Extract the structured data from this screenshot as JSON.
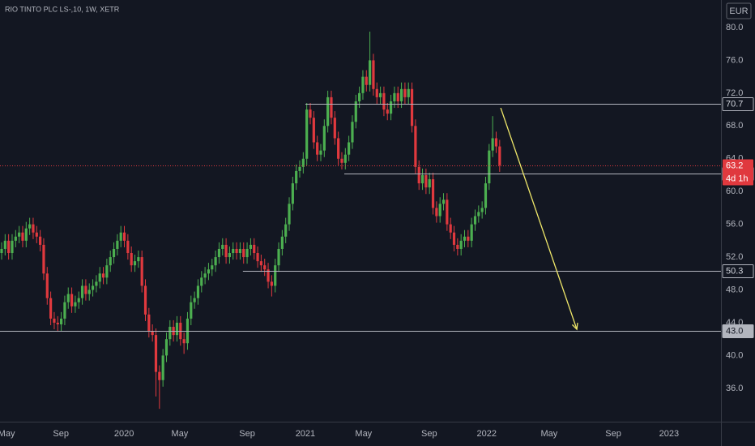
{
  "chart_data": {
    "type": "candlestick",
    "title": "RIO TINTO PLC LS-,10, 1W, XETR",
    "currency": "EUR",
    "up_color": "#4caf50",
    "down_color": "#e0393e",
    "grid": false,
    "open": [
      52.5,
      53,
      54,
      52.5,
      54,
      54.5,
      55,
      54,
      55.5,
      56,
      55,
      54.5,
      53.5,
      50,
      47,
      44.5,
      44,
      43.8,
      44.5,
      46.5,
      47.5,
      46,
      46.5,
      47,
      48.5,
      47.5,
      48,
      48.5,
      49,
      50,
      49.5,
      51,
      52,
      53,
      54,
      55,
      54,
      52.5,
      51,
      51.5,
      52,
      48.5,
      45,
      43,
      42.5,
      38,
      37,
      40,
      42,
      43.5,
      42.5,
      44,
      42,
      41.5,
      44.5,
      46.5,
      47,
      48.5,
      49.5,
      50,
      50.5,
      51,
      52,
      53,
      53.5,
      52,
      52.5,
      53,
      52.5,
      53,
      52,
      53,
      53.5,
      52.5,
      51.5,
      51,
      50.5,
      49,
      48.5,
      51,
      53,
      54.5,
      56,
      58.5,
      61,
      62.5,
      63,
      64,
      70,
      69,
      66,
      64.5,
      65,
      68,
      71.5,
      69,
      66.5,
      64,
      63.5,
      64.5,
      66,
      68.5,
      71,
      72,
      74,
      73,
      76,
      72.5,
      71.5,
      72,
      70,
      69.5,
      71,
      72,
      71,
      72.5,
      71.5,
      72.5,
      68,
      63,
      61,
      62,
      60.5,
      61.5,
      58,
      57,
      58.5,
      59,
      56,
      55,
      53.5,
      53,
      54,
      54.5,
      54,
      56,
      57,
      57.5,
      58,
      61,
      65,
      66.5,
      65.5
    ],
    "high": [
      53.8,
      54.8,
      54.8,
      54.8,
      55.3,
      55.8,
      55.8,
      56.3,
      56.8,
      56.8,
      55.8,
      55.3,
      54.3,
      50.8,
      47.8,
      45.3,
      44.8,
      45.3,
      47.3,
      48.3,
      48.3,
      47.3,
      47.8,
      49.3,
      49.3,
      48.8,
      49.3,
      49.8,
      50.8,
      50.8,
      51.8,
      52.8,
      53.8,
      54.8,
      55.8,
      55.8,
      54.8,
      53.3,
      52.3,
      52.8,
      52.8,
      49.3,
      45.8,
      43.8,
      43.3,
      38.8,
      40.8,
      42.8,
      44.3,
      44.3,
      44.8,
      44.8,
      42.8,
      45.3,
      47.3,
      47.8,
      49.3,
      50.3,
      50.8,
      51.3,
      51.8,
      52.8,
      53.8,
      54.3,
      54.3,
      53.3,
      53.8,
      53.8,
      53.8,
      53.8,
      53.8,
      54.3,
      54.3,
      53.3,
      52.3,
      51.8,
      51.3,
      49.8,
      51.8,
      53.8,
      55.3,
      56.8,
      59.3,
      61.8,
      63.3,
      63.8,
      64.8,
      70.8,
      70.8,
      69.8,
      66.8,
      65.8,
      68.8,
      72.3,
      72.3,
      69.8,
      67.3,
      64.8,
      65.3,
      66.8,
      69.3,
      71.8,
      72.8,
      74.8,
      74.8,
      79.5,
      76.8,
      73.3,
      72.8,
      72.8,
      70.8,
      71.8,
      72.8,
      72.8,
      73.3,
      73.3,
      73.3,
      73.3,
      68.8,
      63.8,
      62.8,
      62.8,
      62.3,
      62.3,
      58.8,
      59.3,
      59.8,
      59.8,
      56.8,
      55.8,
      54.3,
      54.8,
      55.3,
      55.3,
      56.8,
      57.8,
      58.3,
      58.8,
      61.8,
      65.8,
      69.2,
      67.3,
      66.3
    ],
    "low": [
      51.7,
      52.2,
      51.7,
      51.7,
      53.2,
      53.7,
      53.2,
      53.2,
      54.7,
      54.2,
      53.7,
      52.7,
      49.2,
      46.2,
      43.7,
      43.2,
      43,
      43,
      43.7,
      45.7,
      45.2,
      45.2,
      45.7,
      46.2,
      46.7,
      46.7,
      47.2,
      47.7,
      48.2,
      48.7,
      48.7,
      50.2,
      51.2,
      52.2,
      53.2,
      53.2,
      51.7,
      50.2,
      50.2,
      50.7,
      47.7,
      44.2,
      42.2,
      41.7,
      35,
      33.5,
      36.2,
      39.2,
      41.2,
      41.7,
      41.7,
      41.2,
      40.2,
      40.7,
      43.7,
      45.7,
      46.2,
      47.7,
      48.7,
      49.2,
      49.7,
      50.2,
      51.2,
      52.2,
      51.2,
      51.2,
      51.7,
      51.7,
      51.7,
      51.2,
      51.2,
      52.2,
      51.7,
      50.7,
      50.2,
      49.7,
      48.2,
      47.2,
      47.7,
      50.2,
      52.2,
      53.7,
      55.2,
      57.7,
      60.2,
      61.7,
      62.2,
      63.2,
      68.2,
      65.2,
      63.7,
      63.7,
      64.2,
      67.2,
      68.2,
      65.7,
      63.2,
      62.7,
      62.7,
      63.7,
      65.2,
      67.7,
      70.2,
      71.2,
      72.2,
      72.2,
      71.7,
      70.7,
      70.7,
      69.2,
      68.7,
      68.7,
      70.2,
      70.2,
      70.2,
      70.7,
      70.7,
      67.2,
      62.2,
      60.2,
      60.2,
      59.7,
      59.7,
      57.2,
      56.2,
      56.2,
      57.7,
      55.2,
      54.2,
      52.7,
      52.2,
      52.2,
      53.2,
      53.2,
      53.2,
      55.2,
      56.2,
      56.7,
      57.2,
      60.2,
      64.2,
      64.7,
      62.4
    ],
    "close": [
      53,
      54,
      52.5,
      54,
      54.5,
      55,
      54,
      55.5,
      56,
      55,
      54.5,
      53.5,
      50,
      47,
      44.5,
      44,
      43.8,
      44.5,
      46.5,
      47.5,
      46,
      46.5,
      47,
      48.5,
      47.5,
      48,
      48.5,
      49,
      50,
      49.5,
      51,
      52,
      53,
      54,
      55,
      54,
      52.5,
      51,
      51.5,
      52,
      48.5,
      45,
      43,
      42.5,
      38,
      37,
      40,
      42,
      43.5,
      42.5,
      44,
      42,
      41.5,
      44.5,
      46.5,
      47,
      48.5,
      49.5,
      50,
      50.5,
      51,
      52,
      53,
      53.5,
      52,
      52.5,
      53,
      52.5,
      53,
      52,
      53,
      53.5,
      52.5,
      51.5,
      51,
      50.5,
      49,
      48.5,
      51,
      53,
      54.5,
      56,
      58.5,
      61,
      62.5,
      63,
      64,
      70,
      69,
      66,
      64.5,
      65,
      68,
      71.5,
      69,
      66.5,
      64,
      63.5,
      64.5,
      66,
      68.5,
      71,
      72,
      74,
      73,
      76,
      72.5,
      71.5,
      72,
      70,
      69.5,
      71,
      72,
      71,
      72.5,
      71.5,
      72.5,
      68,
      63,
      61,
      62,
      60.5,
      61.5,
      58,
      57,
      58.5,
      59,
      56,
      55,
      53.5,
      53,
      54,
      54.5,
      54,
      56,
      57,
      57.5,
      58,
      61,
      65,
      66.5,
      65.5,
      63.2
    ],
    "xlim": [
      -0.46,
      205.1
    ],
    "ylim": [
      31.93,
      83.36
    ],
    "xticks": [
      {
        "value": 1.4,
        "label": "May"
      },
      {
        "value": 16.9,
        "label": "Sep"
      },
      {
        "value": 34.9,
        "label": "2020"
      },
      {
        "value": 50.8,
        "label": "May"
      },
      {
        "value": 70,
        "label": "Sep"
      },
      {
        "value": 86.6,
        "label": "2021"
      },
      {
        "value": 103.2,
        "label": "May"
      },
      {
        "value": 121.9,
        "label": "Sep"
      },
      {
        "value": 138.3,
        "label": "2022"
      },
      {
        "value": 156.1,
        "label": "May"
      },
      {
        "value": 174.4,
        "label": "Sep"
      },
      {
        "value": 190.3,
        "label": "2023"
      }
    ],
    "yticks": [
      {
        "value": 36,
        "label": "36.0"
      },
      {
        "value": 40,
        "label": "40.0"
      },
      {
        "value": 44,
        "label": "44.0"
      },
      {
        "value": 48,
        "label": "48.0"
      },
      {
        "value": 52,
        "label": "52.0"
      },
      {
        "value": 56,
        "label": "56.0"
      },
      {
        "value": 60,
        "label": "60.0"
      },
      {
        "value": 64,
        "label": "64.0"
      },
      {
        "value": 68,
        "label": "68.0"
      },
      {
        "value": 72,
        "label": "72.0"
      },
      {
        "value": 76,
        "label": "76.0"
      },
      {
        "value": 80,
        "label": "80.0"
      }
    ],
    "levels": [
      {
        "value": 70.7,
        "start": 86.6,
        "style": "outline"
      },
      {
        "value": 62.2,
        "start": 97.7,
        "style": "filled"
      },
      {
        "value": 50.3,
        "start": 68.8,
        "style": "outline"
      },
      {
        "value": 43,
        "label": "43.0",
        "start": -0.46,
        "style": "filled"
      }
    ],
    "last_price": {
      "value": 63.2,
      "countdown": "4d 1h",
      "color": "#e0393e"
    },
    "arrow": {
      "from": [
        142.3,
        70.2
      ],
      "to": [
        164,
        43.2
      ],
      "color": "#f0e86a"
    }
  }
}
